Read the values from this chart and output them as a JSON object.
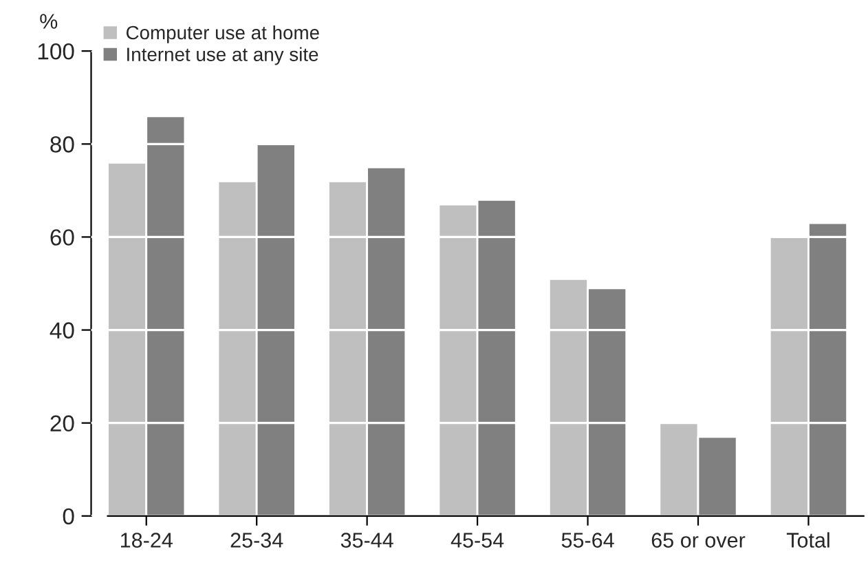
{
  "chart_data": {
    "type": "bar",
    "ylabel": "%",
    "categories": [
      "18-24",
      "25-34",
      "35-44",
      "45-54",
      "55-64",
      "65 or over",
      "Total"
    ],
    "series": [
      {
        "name": "Computer use at home",
        "color": "#bfbfbf",
        "values": [
          76,
          72,
          72,
          67,
          51,
          20,
          60
        ]
      },
      {
        "name": "Internet use at any site",
        "color": "#808080",
        "values": [
          86,
          80,
          75,
          68,
          49,
          17,
          63
        ]
      }
    ],
    "ylim": [
      0,
      100
    ],
    "yticks": [
      0,
      20,
      40,
      60,
      80,
      100
    ],
    "grid": "y",
    "legend": "top left"
  }
}
